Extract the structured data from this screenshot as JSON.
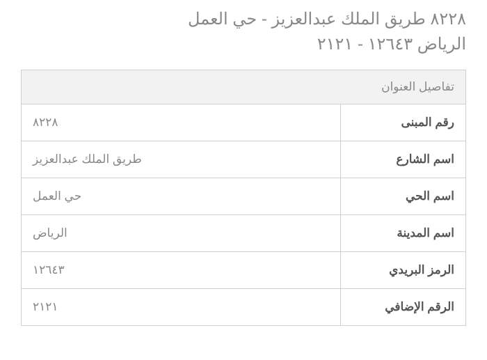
{
  "header": {
    "line1": "٨٢٢٨ طريق الملك عبدالعزيز - حي العمل",
    "line2": "الرياض ١٢٦٤٣ - ٢١٢١"
  },
  "table": {
    "title": "تفاصيل العنوان",
    "rows": [
      {
        "label": "رقم المبنى",
        "value": "٨٢٢٨"
      },
      {
        "label": "اسم الشارع",
        "value": "طريق الملك عبدالعزيز"
      },
      {
        "label": "اسم الحي",
        "value": "حي العمل"
      },
      {
        "label": "اسم المدينة",
        "value": "الرياض"
      },
      {
        "label": "الرمز البريدي",
        "value": "١٢٦٤٣"
      },
      {
        "label": "الرقم الإضافي",
        "value": "٢١٢١"
      }
    ],
    "colors": {
      "header_bg": "#f2f2f2",
      "border": "#d0d0d0",
      "muted_text": "#888888",
      "label_text": "#555555"
    },
    "label_fontsize": 17,
    "value_fontsize": 17,
    "title_fontsize": 17,
    "header_fontsize": 24
  }
}
